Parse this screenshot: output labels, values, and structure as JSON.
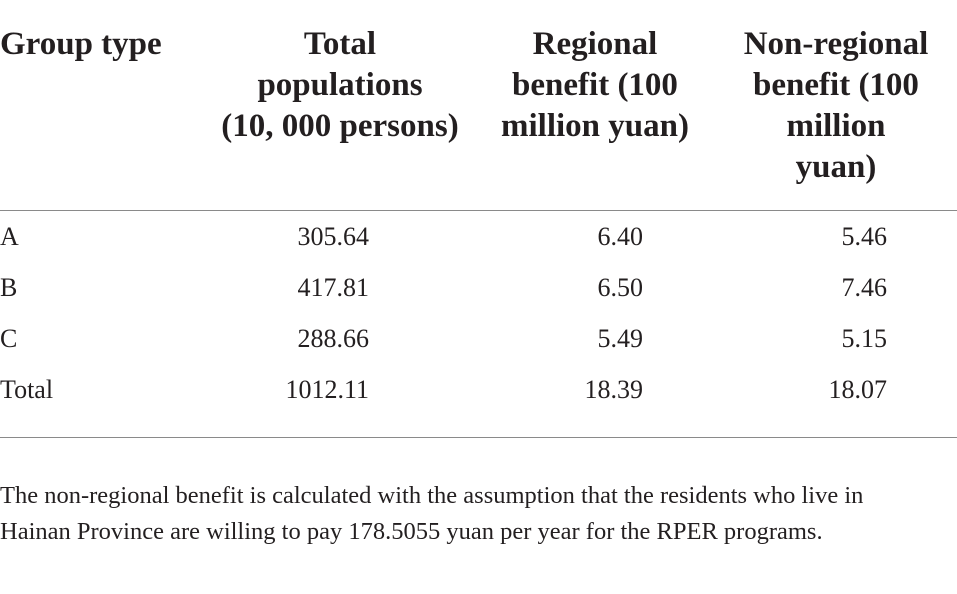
{
  "table": {
    "headers": [
      "Group type",
      "Total populations (10, 000 persons)",
      "Regional benefit (100 million yuan)",
      "Non-regional benefit (100 million yuan)"
    ],
    "header_lines": {
      "col1": [
        "Group type"
      ],
      "col2": [
        "Total",
        "populations",
        "(10, 000 persons)"
      ],
      "col3": [
        "Regional",
        "benefit (100",
        "million yuan)"
      ],
      "col4": [
        "Non-regional",
        "benefit (100",
        "million",
        "yuan)"
      ]
    },
    "rows": [
      {
        "group": "A",
        "population": "305.64",
        "regional": "6.40",
        "non_regional": "5.46"
      },
      {
        "group": "B",
        "population": "417.81",
        "regional": "6.50",
        "non_regional": "7.46"
      },
      {
        "group": "C",
        "population": "288.66",
        "regional": "5.49",
        "non_regional": "5.15"
      },
      {
        "group": "Total",
        "population": "1012.11",
        "regional": "18.39",
        "non_regional": "18.07"
      }
    ]
  },
  "footnote": "The non-regional benefit is calculated with the assumption that the residents who live in Hainan Province are willing to pay 178.5055 yuan per year for the RPER programs."
}
